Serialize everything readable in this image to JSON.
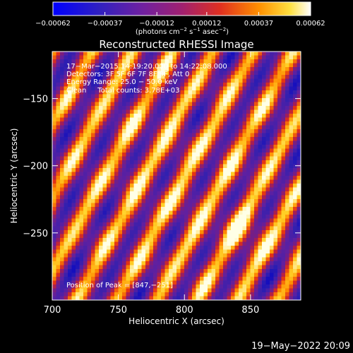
{
  "chart_data": {
    "type": "heatmap",
    "title": "Reconstructed RHESSI Image",
    "xlabel": "Heliocentric X (arcsec)",
    "ylabel": "Heliocentric Y (arcsec)",
    "xlim": [
      700,
      888
    ],
    "ylim": [
      -300,
      -115
    ],
    "x_ticks": [
      700,
      750,
      800,
      850
    ],
    "y_ticks": [
      -250,
      -200,
      -150
    ],
    "x_tick_labels": [
      "700",
      "750",
      "800",
      "850"
    ],
    "y_tick_labels": [
      "−250",
      "−200",
      "−150"
    ],
    "colorbar": {
      "min": -0.00062,
      "max": 0.00062,
      "ticks": [
        -0.00062,
        -0.00037,
        -0.00012,
        0.00012,
        0.00037,
        0.00062
      ],
      "tick_labels": [
        "−0.00062",
        "−0.00037",
        "−0.00012",
        "0.00012",
        "0.00037",
        "0.00062"
      ],
      "units_main": "(photons cm",
      "units_exp1": "−2",
      "units_mid": " s",
      "units_exp2": "−1",
      "units_end": " asec",
      "units_exp3": "−2",
      "units_close": ")"
    },
    "annotations": [
      "17−Mar−2015 14:19:20.000 to 14:22:08.000",
      "Detectors: 3F 5F 6F 7F 8F 9F, Att 0",
      "Energy Range: 25.0 − 50.0 keV",
      "Clean     Total counts: 3.78E+03"
    ],
    "peak_label": "Position of Peak = [847,−251]",
    "peak_position": [
      847,
      -251
    ]
  },
  "footer": {
    "timestamp": "19−May−2022 20:09"
  }
}
